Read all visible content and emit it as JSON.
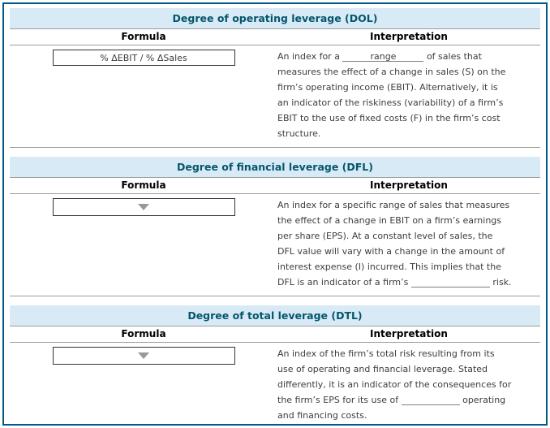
{
  "colors": {
    "frame_border": "#005a87",
    "title_bg": "#d9eaf7",
    "title_text": "#04566b",
    "rule": "#9c9c9c",
    "text": "#3d3d3d",
    "box_border": "#333333",
    "blank_line": "#7f7f7f",
    "arrow": "#999999"
  },
  "columns": {
    "formula": "Formula",
    "interpretation": "Interpretation"
  },
  "panels": [
    {
      "title": "Degree of operating leverage (DOL)",
      "formula": {
        "type": "answer",
        "value": "% ΔEBIT / % ΔSales"
      },
      "interpretation": [
        {
          "type": "text",
          "value": "An index for a "
        },
        {
          "type": "blank_filled",
          "value": "range",
          "width": 100
        },
        {
          "type": "text",
          "value": " of sales that"
        },
        {
          "type": "br"
        },
        {
          "type": "text",
          "value": "measures the effect of a change in sales (S) on the"
        },
        {
          "type": "br"
        },
        {
          "type": "text",
          "value": "firm’s operating income (EBIT). Alternatively, it is"
        },
        {
          "type": "br"
        },
        {
          "type": "text",
          "value": "an indicator of the riskiness (variability) of a firm’s"
        },
        {
          "type": "br"
        },
        {
          "type": "text",
          "value": "EBIT to the use of fixed costs (F) in the firm’s cost"
        },
        {
          "type": "br"
        },
        {
          "type": "text",
          "value": "structure."
        }
      ]
    },
    {
      "title": "Degree of financial leverage (DFL)",
      "formula": {
        "type": "dropdown",
        "icon": "dropdown-arrow-icon"
      },
      "interpretation": [
        {
          "type": "text",
          "value": "An index for a specific range of sales that measures"
        },
        {
          "type": "br"
        },
        {
          "type": "text",
          "value": "the effect of a change in EBIT on a firm’s earnings"
        },
        {
          "type": "br"
        },
        {
          "type": "text",
          "value": "per share (EPS). At a constant level of sales, the"
        },
        {
          "type": "br"
        },
        {
          "type": "text",
          "value": "DFL value will vary with a change in the amount of"
        },
        {
          "type": "br"
        },
        {
          "type": "text",
          "value": "interest expense (I) incurred. This implies that the"
        },
        {
          "type": "br"
        },
        {
          "type": "text",
          "value": "DFL is an indicator of a firm’s "
        },
        {
          "type": "blank_empty",
          "value": "",
          "width": 97
        },
        {
          "type": "text",
          "value": " risk."
        }
      ]
    },
    {
      "title": "Degree of total leverage (DTL)",
      "formula": {
        "type": "dropdown",
        "icon": "dropdown-arrow-icon"
      },
      "interpretation": [
        {
          "type": "text",
          "value": "An index of the firm’s total risk resulting from its"
        },
        {
          "type": "br"
        },
        {
          "type": "text",
          "value": "use of operating and financial leverage. Stated"
        },
        {
          "type": "br"
        },
        {
          "type": "text",
          "value": "differently, it is an indicator of the consequences for"
        },
        {
          "type": "br"
        },
        {
          "type": "text",
          "value": "the firm’s EPS for its use of "
        },
        {
          "type": "blank_empty",
          "value": "",
          "width": 72
        },
        {
          "type": "text",
          "value": " operating"
        },
        {
          "type": "br"
        },
        {
          "type": "text",
          "value": "and financing costs."
        }
      ]
    }
  ]
}
